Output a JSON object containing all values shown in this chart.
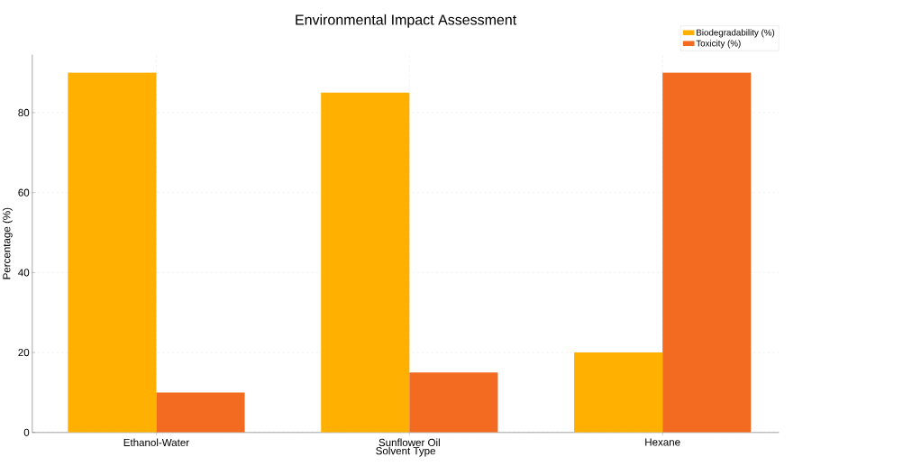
{
  "chart_data": {
    "type": "bar",
    "title": "Environmental Impact Assessment",
    "xlabel": "Solvent Type",
    "ylabel": "Percentage (%)",
    "categories": [
      "Ethanol-Water",
      "Sunflower Oil",
      "Hexane"
    ],
    "series": [
      {
        "name": "Biodegradability (%)",
        "color": "#ffb000",
        "values": [
          90,
          85,
          20
        ]
      },
      {
        "name": "Toxicity (%)",
        "color": "#f26b21",
        "values": [
          10,
          15,
          90
        ]
      }
    ],
    "ylim": [
      0,
      94.5
    ],
    "yticks": [
      0,
      20,
      40,
      60,
      80
    ],
    "grid": true,
    "legend": "top right"
  }
}
